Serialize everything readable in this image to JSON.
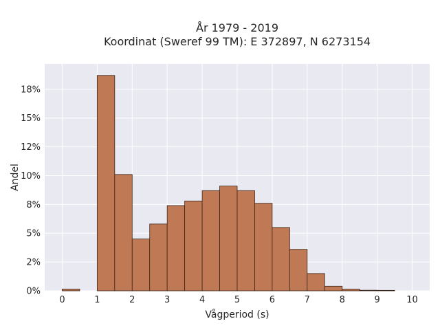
{
  "chart_data": {
    "type": "bar",
    "title_line1": "År 1979 - 2019",
    "title_line2": "Koordinat (Sweref 99 TM): E 372897, N 6273154",
    "xlabel": "Vågperiod (s)",
    "ylabel": "Andel",
    "xlim": [
      -0.5,
      10.5
    ],
    "ylim": [
      0,
      0.197
    ],
    "x_ticks": [
      {
        "value": 0,
        "label": "0"
      },
      {
        "value": 1,
        "label": "1"
      },
      {
        "value": 2,
        "label": "2"
      },
      {
        "value": 3,
        "label": "3"
      },
      {
        "value": 4,
        "label": "4"
      },
      {
        "value": 5,
        "label": "5"
      },
      {
        "value": 6,
        "label": "6"
      },
      {
        "value": 7,
        "label": "7"
      },
      {
        "value": 8,
        "label": "8"
      },
      {
        "value": 9,
        "label": "9"
      },
      {
        "value": 10,
        "label": "10"
      }
    ],
    "y_ticks": [
      {
        "value": 0,
        "label": "0%"
      },
      {
        "value": 0.025,
        "label": "2%"
      },
      {
        "value": 0.05,
        "label": "5%"
      },
      {
        "value": 0.075,
        "label": "8%"
      },
      {
        "value": 0.1,
        "label": "10%"
      },
      {
        "value": 0.125,
        "label": "12%"
      },
      {
        "value": 0.15,
        "label": "15%"
      },
      {
        "value": 0.175,
        "label": "18%"
      }
    ],
    "bin_width": 0.5,
    "bins": [
      {
        "x0": 0.0,
        "value": 0.0015
      },
      {
        "x0": 1.0,
        "value": 0.187
      },
      {
        "x0": 1.5,
        "value": 0.101
      },
      {
        "x0": 2.0,
        "value": 0.045
      },
      {
        "x0": 2.5,
        "value": 0.058
      },
      {
        "x0": 3.0,
        "value": 0.074
      },
      {
        "x0": 3.5,
        "value": 0.078
      },
      {
        "x0": 4.0,
        "value": 0.087
      },
      {
        "x0": 4.5,
        "value": 0.091
      },
      {
        "x0": 5.0,
        "value": 0.087
      },
      {
        "x0": 5.5,
        "value": 0.076
      },
      {
        "x0": 6.0,
        "value": 0.055
      },
      {
        "x0": 6.5,
        "value": 0.036
      },
      {
        "x0": 7.0,
        "value": 0.015
      },
      {
        "x0": 7.5,
        "value": 0.004
      },
      {
        "x0": 8.0,
        "value": 0.0015
      },
      {
        "x0": 8.5,
        "value": 0.0005
      },
      {
        "x0": 9.0,
        "value": 0.0004
      }
    ],
    "colors": {
      "bar_fill": "#bf7a55",
      "bar_edge": "#3a2418",
      "plot_background": "#e9e9f1",
      "grid": "#ffffff"
    },
    "grid": true,
    "legend": "none"
  }
}
